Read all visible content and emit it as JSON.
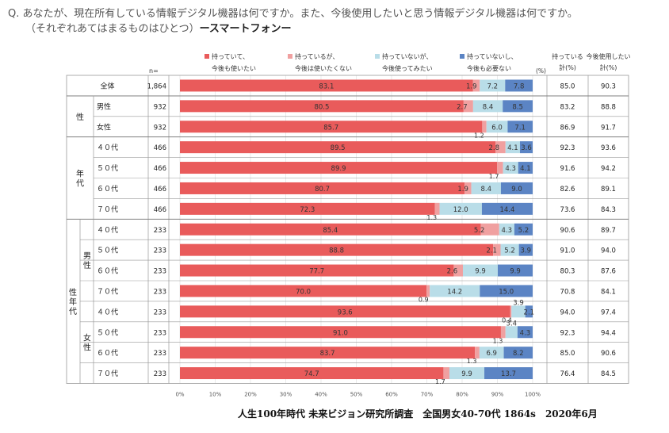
{
  "question": {
    "line1": "Q. あなたが、現在所有している情報デジタル機器は何ですか。また、今後使用したいと思う情報デジタル機器は何ですか。",
    "line2": "（それぞれあてはまるものはひとつ）",
    "subject": "ースマートフォンー"
  },
  "footer": "人生100年時代 未来ビジョン研究所調査　全国男女40-70代 1864s　2020年6月",
  "colors": {
    "own_use": "#e95b5b",
    "own_nouse": "#f0a0a0",
    "not_want": "#b9dde8",
    "not_need": "#5b84c4",
    "border": "#999999"
  },
  "chart_data": {
    "type": "bar",
    "orientation": "horizontal",
    "stacked": true,
    "xlim": [
      0,
      100
    ],
    "x_ticks": [
      "0%",
      "10%",
      "20%",
      "30%",
      "40%",
      "50%",
      "60%",
      "70%",
      "80%",
      "90%",
      "100%"
    ],
    "unit_label": "(%)",
    "n_label": "n=",
    "legend": [
      {
        "line1": "持っていて、",
        "line2": "今後も使いたい"
      },
      {
        "line1": "持っているが、",
        "line2": "今後は使いたくない"
      },
      {
        "line1": "持っていないが、",
        "line2": "今後使ってみたい"
      },
      {
        "line1": "持っていないし、",
        "line2": "今後も必要ない"
      }
    ],
    "col_headers": [
      {
        "line1": "持っている",
        "line2": "計(%)"
      },
      {
        "line1": "今後使用したい",
        "line2": "計(%)"
      }
    ],
    "groups": [
      {
        "name": "",
        "sub": ""
      },
      {
        "name": "性",
        "sub": ""
      },
      {
        "name": "年代",
        "sub": ""
      },
      {
        "name": "性年代",
        "sub": "男性"
      },
      {
        "name": "",
        "sub": "女性"
      }
    ],
    "rows": [
      {
        "label": "全体",
        "n": "1,864",
        "values": [
          83.1,
          1.9,
          7.2,
          7.8
        ],
        "labels": [
          "83.1",
          "1.9",
          "7.2",
          "7.8"
        ],
        "own": "85.0",
        "want": "90.3"
      },
      {
        "label": "男性",
        "n": "932",
        "values": [
          80.5,
          2.7,
          8.4,
          8.5
        ],
        "labels": [
          "80.5",
          "2.7",
          "8.4",
          "8.5"
        ],
        "own": "83.2",
        "want": "88.8"
      },
      {
        "label": "女性",
        "n": "932",
        "values": [
          85.7,
          1.2,
          6.0,
          7.1
        ],
        "labels": [
          "85.7",
          "1.2",
          "6.0",
          "7.1"
        ],
        "own": "86.9",
        "want": "91.7"
      },
      {
        "label": "４０代",
        "n": "466",
        "values": [
          89.5,
          2.8,
          4.1,
          3.6
        ],
        "labels": [
          "89.5",
          "2.8",
          "4.1",
          "3.6"
        ],
        "own": "92.3",
        "want": "93.6"
      },
      {
        "label": "５０代",
        "n": "466",
        "values": [
          89.9,
          1.7,
          4.3,
          4.1
        ],
        "labels": [
          "89.9",
          "1.7",
          "4.3",
          "4.1"
        ],
        "own": "91.6",
        "want": "94.2"
      },
      {
        "label": "６０代",
        "n": "466",
        "values": [
          80.7,
          1.9,
          8.4,
          9.0
        ],
        "labels": [
          "80.7",
          "1.9",
          "8.4",
          "9.0"
        ],
        "own": "82.6",
        "want": "89.1"
      },
      {
        "label": "７０代",
        "n": "466",
        "values": [
          72.3,
          1.3,
          12.0,
          14.4
        ],
        "labels": [
          "72.3",
          "1.3",
          "12.0",
          "14.4"
        ],
        "own": "73.6",
        "want": "84.3"
      },
      {
        "label": "４０代",
        "n": "233",
        "values": [
          85.4,
          5.2,
          4.3,
          5.2
        ],
        "labels": [
          "85.4",
          "5.2",
          "4.3",
          "5.2"
        ],
        "own": "90.6",
        "want": "89.7"
      },
      {
        "label": "５０代",
        "n": "233",
        "values": [
          88.8,
          2.1,
          5.2,
          3.9
        ],
        "labels": [
          "88.8",
          "2.1",
          "5.2",
          "3.9"
        ],
        "own": "91.0",
        "want": "94.0"
      },
      {
        "label": "６０代",
        "n": "233",
        "values": [
          77.7,
          2.6,
          9.9,
          9.9
        ],
        "labels": [
          "77.7",
          "2.6",
          "9.9",
          "9.9"
        ],
        "own": "80.3",
        "want": "87.6"
      },
      {
        "label": "７０代",
        "n": "233",
        "values": [
          70.0,
          0.9,
          14.2,
          15.0
        ],
        "labels": [
          "70.0",
          "0.9",
          "14.2",
          "15.0"
        ],
        "own": "70.8",
        "want": "84.1"
      },
      {
        "label": "４０代",
        "n": "233",
        "values": [
          93.6,
          0.4,
          3.9,
          2.1
        ],
        "labels": [
          "93.6",
          "0.4",
          "3.9",
          "2.1"
        ],
        "own": "94.0",
        "want": "97.4"
      },
      {
        "label": "５０代",
        "n": "233",
        "values": [
          91.0,
          1.3,
          3.4,
          4.3
        ],
        "labels": [
          "91.0",
          "1.3",
          "3.4",
          "4.3"
        ],
        "own": "92.3",
        "want": "94.4"
      },
      {
        "label": "６０代",
        "n": "233",
        "values": [
          83.7,
          1.3,
          6.9,
          8.2
        ],
        "labels": [
          "83.7",
          "1.3",
          "6.9",
          "8.2"
        ],
        "own": "85.0",
        "want": "90.6"
      },
      {
        "label": "７０代",
        "n": "233",
        "values": [
          74.7,
          1.7,
          9.9,
          13.7
        ],
        "labels": [
          "74.7",
          "1.7",
          "9.9",
          "13.7"
        ],
        "own": "76.4",
        "want": "84.5"
      }
    ]
  }
}
